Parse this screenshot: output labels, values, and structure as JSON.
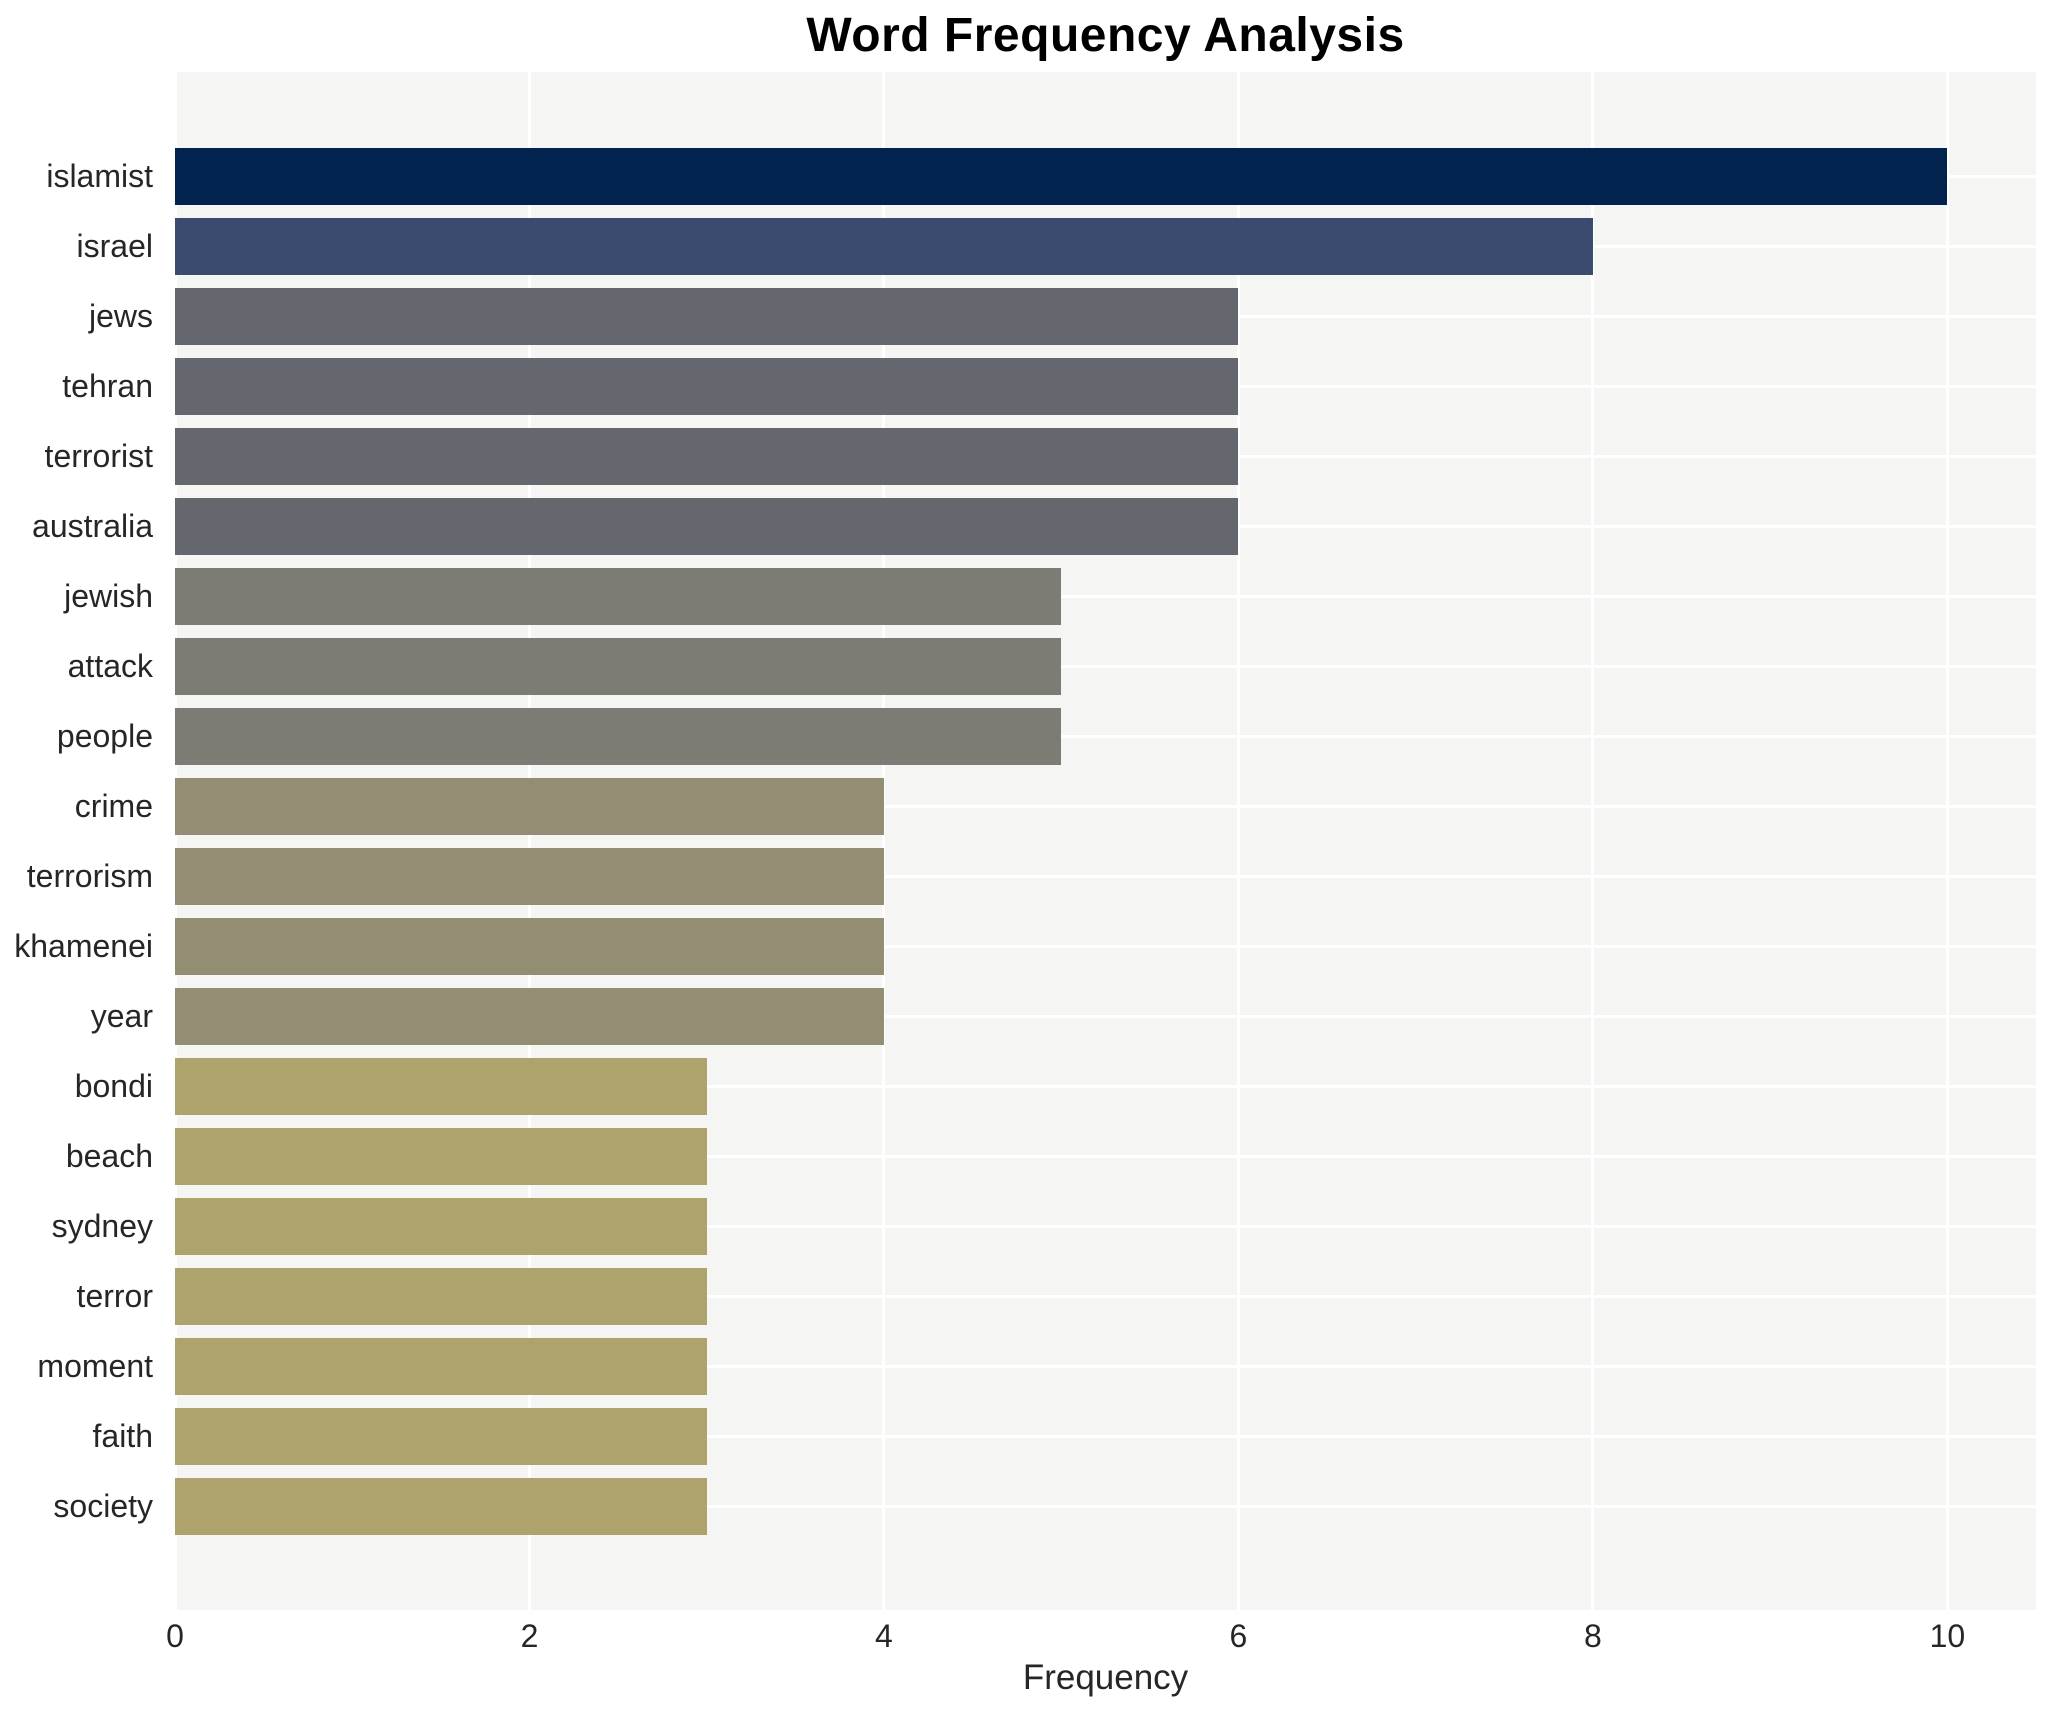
{
  "title": "Word Frequency Analysis",
  "xlabel": "Frequency",
  "chart_data": {
    "type": "bar",
    "orientation": "horizontal",
    "title": "Word Frequency Analysis",
    "xlabel": "Frequency",
    "ylabel": "",
    "categories": [
      "islamist",
      "israel",
      "jews",
      "tehran",
      "terrorist",
      "australia",
      "jewish",
      "attack",
      "people",
      "crime",
      "terrorism",
      "khamenei",
      "year",
      "bondi",
      "beach",
      "sydney",
      "terror",
      "moment",
      "faith",
      "society"
    ],
    "values": [
      10,
      8,
      6,
      6,
      6,
      6,
      5,
      5,
      5,
      4,
      4,
      4,
      4,
      3,
      3,
      3,
      3,
      3,
      3,
      3
    ],
    "bar_colors": [
      "#03234f",
      "#3b4a6f",
      "#65676f",
      "#65676f",
      "#65676f",
      "#65676f",
      "#7c7b74",
      "#7c7b74",
      "#7c7b74",
      "#938d73",
      "#938d73",
      "#938d73",
      "#938d73",
      "#aea36d",
      "#aea36d",
      "#aea36d",
      "#aea36d",
      "#aea36d",
      "#aea36d",
      "#aea36d"
    ],
    "xticks": [
      0,
      2,
      4,
      6,
      8,
      10
    ],
    "xlim": [
      0,
      10.5
    ],
    "grid": true,
    "legend": "none",
    "plot_background": "#f5f5f3",
    "grid_color": "#ffffff",
    "text_color": "#262626",
    "title_color": "#000000"
  }
}
